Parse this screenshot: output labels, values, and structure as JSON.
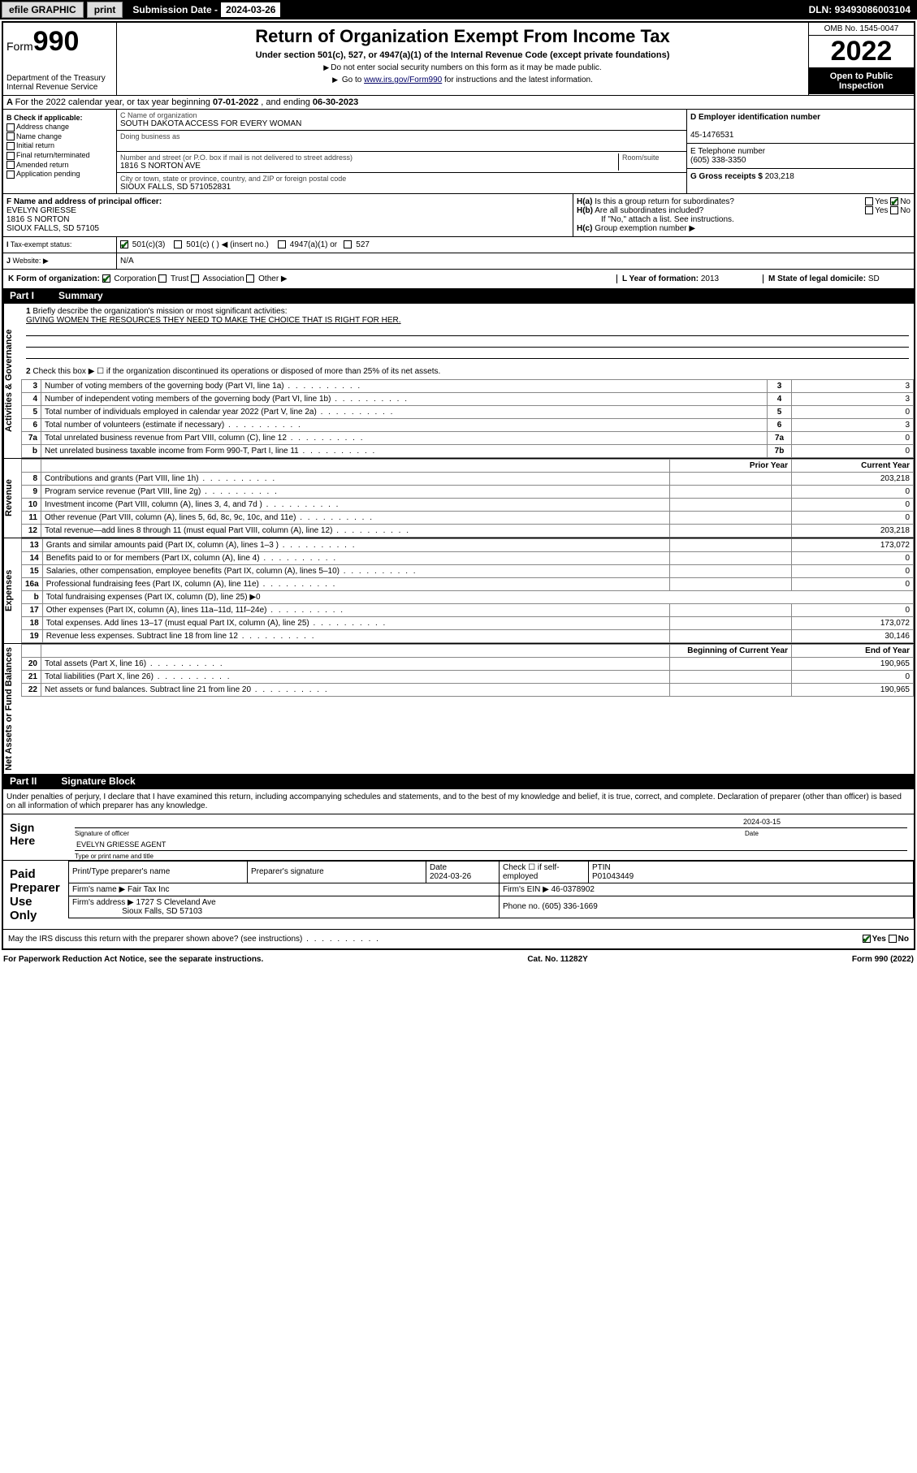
{
  "topbar": {
    "efile": "efile GRAPHIC",
    "print": "print",
    "sub_label": "Submission Date - ",
    "sub_date": "2024-03-26",
    "dln_label": "DLN: ",
    "dln": "93493086003104"
  },
  "header": {
    "form_label": "Form",
    "form_num": "990",
    "dept": "Department of the Treasury\nInternal Revenue Service",
    "title": "Return of Organization Exempt From Income Tax",
    "subtitle": "Under section 501(c), 527, or 4947(a)(1) of the Internal Revenue Code (except private foundations)",
    "note1": "Do not enter social security numbers on this form as it may be made public.",
    "note2_pre": "Go to ",
    "note2_link": "www.irs.gov/Form990",
    "note2_post": " for instructions and the latest information.",
    "omb": "OMB No. 1545-0047",
    "year": "2022",
    "open": "Open to Public Inspection"
  },
  "secA": {
    "text": "For the 2022 calendar year, or tax year beginning ",
    "begin": "07-01-2022",
    "mid": " , and ending ",
    "end": "06-30-2023"
  },
  "colB": {
    "header": "B Check if applicable:",
    "items": [
      "Address change",
      "Name change",
      "Initial return",
      "Final return/terminated",
      "Amended return",
      "Application pending"
    ]
  },
  "org": {
    "c_label": "C Name of organization",
    "name": "SOUTH DAKOTA ACCESS FOR EVERY WOMAN",
    "dba_label": "Doing business as",
    "addr_label": "Number and street (or P.O. box if mail is not delivered to street address)",
    "room_label": "Room/suite",
    "addr": "1816 S NORTON AVE",
    "city_label": "City or town, state or province, country, and ZIP or foreign postal code",
    "city": "SIOUX FALLS, SD  571052831"
  },
  "right": {
    "d_label": "D Employer identification number",
    "ein": "45-1476531",
    "e_label": "E Telephone number",
    "phone": "(605) 338-3350",
    "g_label": "G Gross receipts $ ",
    "gross": "203,218"
  },
  "f": {
    "label": "F  Name and address of principal officer:",
    "name": "EVELYN GRIESSE",
    "addr1": "1816 S NORTON",
    "addr2": "SIOUX FALLS, SD  57105"
  },
  "h": {
    "a": "Is this a group return for subordinates?",
    "b": "Are all subordinates included?",
    "note": "If \"No,\" attach a list. See instructions.",
    "c": "Group exemption number ▶",
    "yes": "Yes",
    "no": "No"
  },
  "i": {
    "label": "Tax-exempt status:",
    "opts": [
      "501(c)(3)",
      "501(c) (   ) ◀ (insert no.)",
      "4947(a)(1) or",
      "527"
    ]
  },
  "j": {
    "label": "Website: ▶",
    "val": "N/A"
  },
  "k": {
    "label": "K Form of organization:",
    "opts": [
      "Corporation",
      "Trust",
      "Association",
      "Other ▶"
    ]
  },
  "l": {
    "label": "L Year of formation: ",
    "val": "2013"
  },
  "m": {
    "label": "M State of legal domicile: ",
    "val": "SD"
  },
  "part1": {
    "label": "Part I",
    "title": "Summary"
  },
  "mission": {
    "q1": "Briefly describe the organization's mission or most significant activities:",
    "text": "GIVING WOMEN THE RESOURCES THEY NEED TO MAKE THE CHOICE THAT IS RIGHT FOR HER.",
    "q2": "Check this box ▶ ☐  if the organization discontinued its operations or disposed of more than 25% of its net assets."
  },
  "gov_rows": [
    {
      "n": "3",
      "t": "Number of voting members of the governing body (Part VI, line 1a)",
      "box": "3",
      "v": "3"
    },
    {
      "n": "4",
      "t": "Number of independent voting members of the governing body (Part VI, line 1b)",
      "box": "4",
      "v": "3"
    },
    {
      "n": "5",
      "t": "Total number of individuals employed in calendar year 2022 (Part V, line 2a)",
      "box": "5",
      "v": "0"
    },
    {
      "n": "6",
      "t": "Total number of volunteers (estimate if necessary)",
      "box": "6",
      "v": "3"
    },
    {
      "n": "7a",
      "t": "Total unrelated business revenue from Part VIII, column (C), line 12",
      "box": "7a",
      "v": "0"
    },
    {
      "n": "b",
      "t": "Net unrelated business taxable income from Form 990-T, Part I, line 11",
      "box": "7b",
      "v": "0"
    }
  ],
  "col_headers": {
    "py": "Prior Year",
    "cy": "Current Year",
    "boy": "Beginning of Current Year",
    "eoy": "End of Year"
  },
  "rev_rows": [
    {
      "n": "8",
      "t": "Contributions and grants (Part VIII, line 1h)",
      "py": "",
      "cy": "203,218"
    },
    {
      "n": "9",
      "t": "Program service revenue (Part VIII, line 2g)",
      "py": "",
      "cy": "0"
    },
    {
      "n": "10",
      "t": "Investment income (Part VIII, column (A), lines 3, 4, and 7d )",
      "py": "",
      "cy": "0"
    },
    {
      "n": "11",
      "t": "Other revenue (Part VIII, column (A), lines 5, 6d, 8c, 9c, 10c, and 11e)",
      "py": "",
      "cy": "0"
    },
    {
      "n": "12",
      "t": "Total revenue—add lines 8 through 11 (must equal Part VIII, column (A), line 12)",
      "py": "",
      "cy": "203,218"
    }
  ],
  "exp_rows": [
    {
      "n": "13",
      "t": "Grants and similar amounts paid (Part IX, column (A), lines 1–3 )",
      "py": "",
      "cy": "173,072"
    },
    {
      "n": "14",
      "t": "Benefits paid to or for members (Part IX, column (A), line 4)",
      "py": "",
      "cy": "0"
    },
    {
      "n": "15",
      "t": "Salaries, other compensation, employee benefits (Part IX, column (A), lines 5–10)",
      "py": "",
      "cy": "0"
    },
    {
      "n": "16a",
      "t": "Professional fundraising fees (Part IX, column (A), line 11e)",
      "py": "",
      "cy": "0"
    },
    {
      "n": "b",
      "t": "Total fundraising expenses (Part IX, column (D), line 25) ▶0",
      "py": "—",
      "cy": "—"
    },
    {
      "n": "17",
      "t": "Other expenses (Part IX, column (A), lines 11a–11d, 11f–24e)",
      "py": "",
      "cy": "0"
    },
    {
      "n": "18",
      "t": "Total expenses. Add lines 13–17 (must equal Part IX, column (A), line 25)",
      "py": "",
      "cy": "173,072"
    },
    {
      "n": "19",
      "t": "Revenue less expenses. Subtract line 18 from line 12",
      "py": "",
      "cy": "30,146"
    }
  ],
  "net_rows": [
    {
      "n": "20",
      "t": "Total assets (Part X, line 16)",
      "py": "",
      "cy": "190,965"
    },
    {
      "n": "21",
      "t": "Total liabilities (Part X, line 26)",
      "py": "",
      "cy": "0"
    },
    {
      "n": "22",
      "t": "Net assets or fund balances. Subtract line 21 from line 20",
      "py": "",
      "cy": "190,965"
    }
  ],
  "vtabs": {
    "gov": "Activities & Governance",
    "rev": "Revenue",
    "exp": "Expenses",
    "net": "Net Assets or Fund Balances"
  },
  "part2": {
    "label": "Part II",
    "title": "Signature Block"
  },
  "penalty": "Under penalties of perjury, I declare that I have examined this return, including accompanying schedules and statements, and to the best of my knowledge and belief, it is true, correct, and complete. Declaration of preparer (other than officer) is based on all information of which preparer has any knowledge.",
  "sign": {
    "here": "Sign Here",
    "sig_label": "Signature of officer",
    "date_label": "Date",
    "date": "2024-03-15",
    "name": "EVELYN GRIESSE  AGENT",
    "name_label": "Type or print name and title"
  },
  "paid": {
    "label": "Paid Preparer Use Only",
    "h1": "Print/Type preparer's name",
    "h2": "Preparer's signature",
    "h3": "Date",
    "h4": "Check ☐ if self-employed",
    "h5": "PTIN",
    "date": "2024-03-26",
    "ptin": "P01043449",
    "firm_label": "Firm's name   ▶",
    "firm": "Fair Tax Inc",
    "ein_label": "Firm's EIN ▶",
    "ein": "46-0378902",
    "addr_label": "Firm's address ▶",
    "addr1": "1727 S Cleveland Ave",
    "addr2": "Sioux Falls, SD  57103",
    "phone_label": "Phone no.",
    "phone": "(605) 336-1669"
  },
  "discuss": "May the IRS discuss this return with the preparer shown above? (see instructions)",
  "footer": {
    "pra": "For Paperwork Reduction Act Notice, see the separate instructions.",
    "cat": "Cat. No. 11282Y",
    "form": "Form 990 (2022)"
  }
}
